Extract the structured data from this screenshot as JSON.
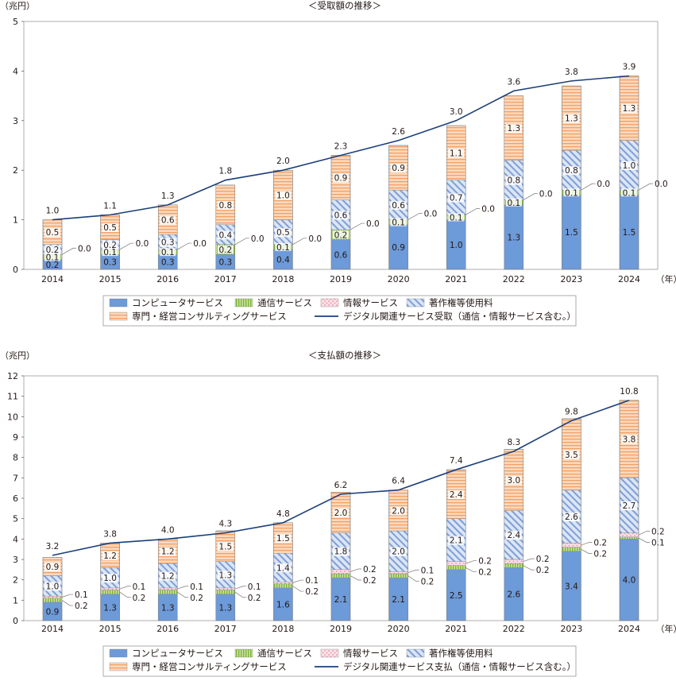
{
  "colors": {
    "computer": "#6d9ad8",
    "telecom": "#a3cd6b",
    "info": "#f6c7d1",
    "copyright": "#a9bfe6",
    "consulting": "#f8c195",
    "line": "#1b3f7a"
  },
  "legend": {
    "computer": "コンピュータサービス",
    "telecom": "通信サービス",
    "info": "情報サービス",
    "copyright": "著作権等使用料",
    "consulting": "専門・経営コンサルティングサービス"
  },
  "chart_data": [
    {
      "type": "bar",
      "stacked": true,
      "title": "＜受取額の推移＞",
      "yunit": "（兆円）",
      "xunit": "（年）",
      "ylim": [
        0,
        5
      ],
      "yticks": [
        "0",
        "1",
        "2",
        "3",
        "4",
        "5"
      ],
      "categories": [
        "2014",
        "2015",
        "2016",
        "2017",
        "2018",
        "2019",
        "2020",
        "2021",
        "2022",
        "2023",
        "2024"
      ],
      "series": [
        {
          "key": "computer",
          "name": "コンピュータサービス",
          "values": [
            0.2,
            0.3,
            0.3,
            0.3,
            0.4,
            0.6,
            0.9,
            1.0,
            1.3,
            1.5,
            1.5
          ],
          "labels": [
            "0.2",
            "0.3",
            "0.3",
            "0.3",
            "0.4",
            "0.6",
            "0.9",
            "1.0",
            "1.3",
            "1.5",
            "1.5"
          ]
        },
        {
          "key": "telecom",
          "name": "通信サービス",
          "values": [
            0.1,
            0.1,
            0.1,
            0.2,
            0.1,
            0.2,
            0.1,
            0.1,
            0.1,
            0.1,
            0.1
          ],
          "labels": [
            "0.1",
            "0.1",
            "0.1",
            "0.2",
            "0.1",
            "0.2",
            "0.1",
            "0.1",
            "0.1",
            "0.1",
            "0.1"
          ]
        },
        {
          "key": "info",
          "name": "情報サービス",
          "values": [
            0.0,
            0.0,
            0.0,
            0.0,
            0.0,
            0.0,
            0.0,
            0.0,
            0.0,
            0.0,
            0.0
          ],
          "labels": [
            "0.0",
            "0.0",
            "0.0",
            "0.0",
            "0.0",
            "0.0",
            "0.0",
            "0.0",
            "0.0",
            "0.0",
            "0.0"
          ]
        },
        {
          "key": "copyright",
          "name": "著作権等使用料",
          "values": [
            0.2,
            0.2,
            0.3,
            0.4,
            0.5,
            0.6,
            0.6,
            0.7,
            0.8,
            0.8,
            1.0
          ],
          "labels": [
            "0.2",
            "0.2",
            "0.3",
            "0.4",
            "0.5",
            "0.6",
            "0.6",
            "0.7",
            "0.8",
            "0.8",
            "1.0"
          ]
        },
        {
          "key": "consulting",
          "name": "専門・経営コンサルティングサービス",
          "values": [
            0.5,
            0.5,
            0.6,
            0.8,
            1.0,
            0.9,
            0.9,
            1.1,
            1.3,
            1.3,
            1.3
          ],
          "labels": [
            "0.5",
            "0.5",
            "0.6",
            "0.8",
            "1.0",
            "0.9",
            "0.9",
            "1.1",
            "1.3",
            "1.3",
            "1.3"
          ]
        }
      ],
      "line": {
        "name": "デジタル関連サービス受取（通信・情報サービス含む。）",
        "values": [
          1.0,
          1.1,
          1.3,
          1.8,
          2.0,
          2.3,
          2.6,
          3.0,
          3.6,
          3.8,
          3.9
        ],
        "labels": [
          "1.0",
          "1.1",
          "1.3",
          "1.8",
          "2.0",
          "2.3",
          "2.6",
          "3.0",
          "3.6",
          "3.8",
          "3.9"
        ]
      }
    },
    {
      "type": "bar",
      "stacked": true,
      "title": "＜支払額の推移＞",
      "yunit": "（兆円）",
      "xunit": "（年）",
      "ylim": [
        0,
        12
      ],
      "yticks": [
        "0",
        "1",
        "2",
        "3",
        "4",
        "5",
        "6",
        "7",
        "8",
        "9",
        "10",
        "11",
        "12"
      ],
      "categories": [
        "2014",
        "2015",
        "2016",
        "2017",
        "2018",
        "2019",
        "2020",
        "2021",
        "2022",
        "2023",
        "2024"
      ],
      "series": [
        {
          "key": "computer",
          "name": "コンピュータサービス",
          "values": [
            0.9,
            1.3,
            1.3,
            1.3,
            1.6,
            2.1,
            2.1,
            2.5,
            2.6,
            3.4,
            4.0
          ],
          "labels": [
            "0.9",
            "1.3",
            "1.3",
            "1.3",
            "1.6",
            "2.1",
            "2.1",
            "2.5",
            "2.6",
            "3.4",
            "4.0"
          ]
        },
        {
          "key": "telecom",
          "name": "通信サービス",
          "values": [
            0.2,
            0.2,
            0.2,
            0.2,
            0.2,
            0.2,
            0.2,
            0.2,
            0.2,
            0.2,
            0.1
          ],
          "labels": [
            "0.2",
            "0.2",
            "0.2",
            "0.2",
            "0.2",
            "0.2",
            "0.2",
            "0.2",
            "0.2",
            "0.2",
            "0.1"
          ]
        },
        {
          "key": "info",
          "name": "情報サービス",
          "values": [
            0.1,
            0.1,
            0.1,
            0.1,
            0.1,
            0.2,
            0.1,
            0.2,
            0.2,
            0.2,
            0.2
          ],
          "labels": [
            "0.1",
            "0.1",
            "0.1",
            "0.1",
            "0.1",
            "0.2",
            "0.1",
            "0.2",
            "0.2",
            "0.2",
            "0.2"
          ]
        },
        {
          "key": "copyright",
          "name": "著作権等使用料",
          "values": [
            1.0,
            1.0,
            1.2,
            1.3,
            1.4,
            1.8,
            2.0,
            2.1,
            2.4,
            2.6,
            2.7
          ],
          "labels": [
            "1.0",
            "1.0",
            "1.2",
            "1.3",
            "1.4",
            "1.8",
            "2.0",
            "2.1",
            "2.4",
            "2.6",
            "2.7"
          ]
        },
        {
          "key": "consulting",
          "name": "専門・経営コンサルティングサービス",
          "values": [
            0.9,
            1.2,
            1.2,
            1.5,
            1.5,
            2.0,
            2.0,
            2.4,
            3.0,
            3.5,
            3.8
          ],
          "labels": [
            "0.9",
            "1.2",
            "1.2",
            "1.5",
            "1.5",
            "2.0",
            "2.0",
            "2.4",
            "3.0",
            "3.5",
            "3.8"
          ]
        }
      ],
      "line": {
        "name": "デジタル関連サービス支払（通信・情報サービス含む。）",
        "values": [
          3.2,
          3.8,
          4.0,
          4.3,
          4.8,
          6.2,
          6.4,
          7.4,
          8.3,
          9.8,
          10.8
        ],
        "labels": [
          "3.2",
          "3.8",
          "4.0",
          "4.3",
          "4.8",
          "6.2",
          "6.4",
          "7.4",
          "8.3",
          "9.8",
          "10.8"
        ]
      }
    }
  ]
}
